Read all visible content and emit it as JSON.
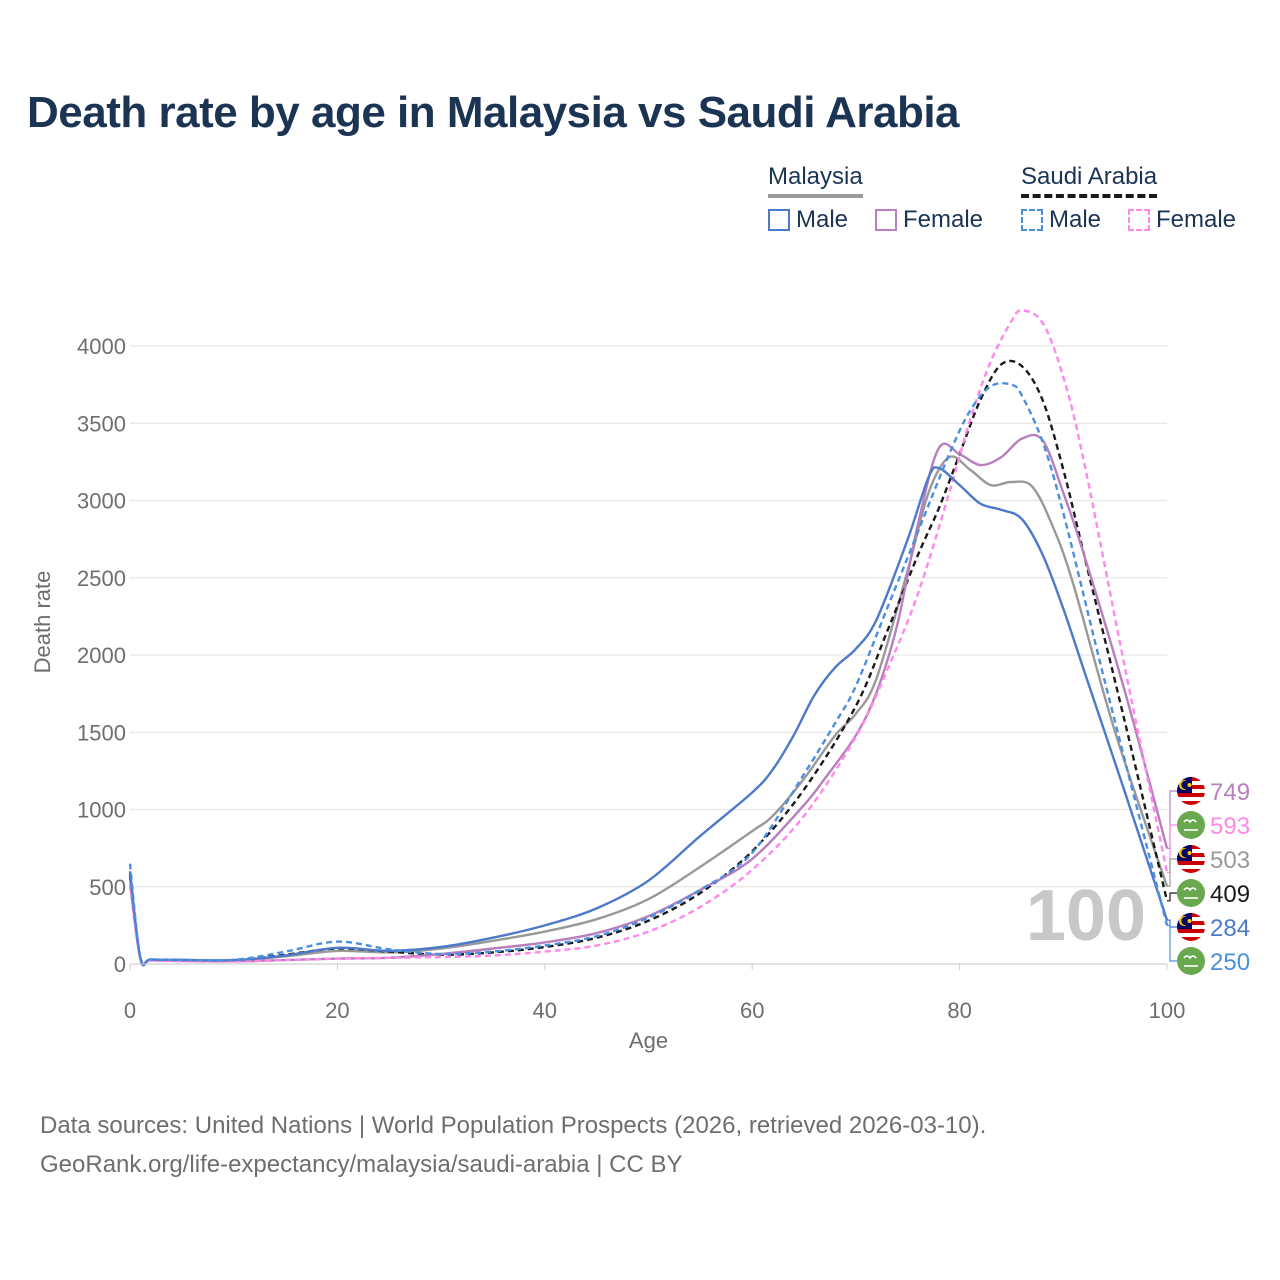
{
  "title": "Death rate by age in Malaysia vs Saudi Arabia",
  "legend": {
    "groups": [
      {
        "name": "Malaysia",
        "items": [
          "Male",
          "Female"
        ]
      },
      {
        "name": "Saudi Arabia",
        "items": [
          "Male",
          "Female"
        ]
      }
    ]
  },
  "source": {
    "line1": "Data sources: United Nations | World Population Prospects (2026, retrieved 2026-03-10).",
    "line2": "GeoRank.org/life-expectancy/malaysia/saudi-arabia | CC BY"
  },
  "chart_data": {
    "type": "line",
    "xlabel": "Age",
    "ylabel": "Death rate",
    "xlim": [
      0,
      100
    ],
    "ylim": [
      0,
      4000
    ],
    "xticks": [
      0,
      20,
      40,
      60,
      80,
      100
    ],
    "yticks": [
      0,
      500,
      1000,
      1500,
      2000,
      2500,
      3000,
      3500,
      4000
    ],
    "watermark": "100",
    "series": [
      {
        "id": "my-total",
        "name": "Malaysia (both sexes)",
        "color": "#999999",
        "dashed": false,
        "x": [
          0,
          1,
          2,
          5,
          10,
          15,
          20,
          25,
          30,
          35,
          40,
          45,
          50,
          55,
          60,
          62,
          65,
          68,
          70,
          72,
          75,
          77,
          79,
          81,
          83,
          85,
          87,
          89,
          91,
          95,
          100
        ],
        "y": [
          560,
          40,
          28,
          25,
          22,
          50,
          85,
          75,
          100,
          150,
          210,
          290,
          420,
          630,
          860,
          960,
          1200,
          1480,
          1620,
          1850,
          2550,
          3050,
          3280,
          3200,
          3100,
          3120,
          3090,
          2830,
          2450,
          1500,
          503
        ]
      },
      {
        "id": "my-male",
        "name": "Malaysia Male",
        "color": "#4c7ac9",
        "dashed": false,
        "x": [
          0,
          1,
          2,
          5,
          10,
          15,
          20,
          25,
          30,
          35,
          40,
          45,
          50,
          55,
          60,
          62,
          64,
          66,
          68,
          70,
          72,
          75,
          77,
          78,
          80,
          82,
          84,
          86,
          88,
          90,
          92,
          96,
          100
        ],
        "y": [
          600,
          40,
          30,
          27,
          25,
          55,
          105,
          85,
          110,
          170,
          250,
          360,
          540,
          830,
          1110,
          1260,
          1480,
          1740,
          1920,
          2040,
          2230,
          2750,
          3150,
          3210,
          3100,
          2980,
          2940,
          2880,
          2650,
          2300,
          1900,
          1100,
          284
        ]
      },
      {
        "id": "my-female",
        "name": "Malaysia Female",
        "color": "#b77fbd",
        "dashed": false,
        "x": [
          0,
          1,
          2,
          5,
          10,
          15,
          20,
          25,
          30,
          35,
          40,
          45,
          50,
          55,
          60,
          65,
          67,
          70,
          72,
          74,
          76,
          78,
          80,
          82,
          84,
          86,
          88,
          90,
          92,
          96,
          100
        ],
        "y": [
          520,
          35,
          25,
          20,
          18,
          25,
          35,
          40,
          65,
          100,
          140,
          200,
          310,
          480,
          680,
          1030,
          1200,
          1480,
          1760,
          2200,
          2850,
          3340,
          3300,
          3230,
          3280,
          3400,
          3390,
          3050,
          2650,
          1750,
          749
        ]
      },
      {
        "id": "sa-total",
        "name": "Saudi Arabia (both sexes)",
        "color": "#1a1a1a",
        "dashed": true,
        "x": [
          0,
          1,
          2,
          5,
          10,
          15,
          20,
          25,
          30,
          35,
          40,
          45,
          50,
          55,
          60,
          65,
          70,
          73,
          76,
          78,
          80,
          82,
          84,
          86,
          88,
          90,
          92,
          96,
          100
        ],
        "y": [
          580,
          35,
          25,
          22,
          22,
          60,
          100,
          80,
          60,
          75,
          110,
          170,
          280,
          460,
          730,
          1130,
          1670,
          2150,
          2650,
          2950,
          3300,
          3650,
          3880,
          3870,
          3650,
          3200,
          2650,
          1550,
          409
        ]
      },
      {
        "id": "sa-male",
        "name": "Saudi Arabia Male",
        "color": "#4a8fe0",
        "dashed": true,
        "x": [
          0,
          1,
          2,
          5,
          10,
          15,
          20,
          25,
          30,
          35,
          40,
          45,
          50,
          55,
          60,
          65,
          68,
          70,
          73,
          76,
          79,
          81,
          83,
          85,
          86,
          88,
          90,
          94,
          100
        ],
        "y": [
          650,
          40,
          30,
          27,
          27,
          80,
          145,
          95,
          65,
          80,
          120,
          180,
          300,
          480,
          720,
          1230,
          1560,
          1800,
          2300,
          2800,
          3300,
          3580,
          3740,
          3750,
          3680,
          3380,
          2920,
          1830,
          250
        ]
      },
      {
        "id": "sa-female",
        "name": "Saudi Arabia Female",
        "color": "#ff88ea",
        "dashed": true,
        "x": [
          0,
          1,
          2,
          5,
          10,
          15,
          20,
          25,
          30,
          35,
          40,
          45,
          50,
          55,
          60,
          65,
          70,
          73,
          76,
          79,
          81,
          83,
          85,
          86,
          88,
          90,
          92,
          96,
          100
        ],
        "y": [
          540,
          30,
          22,
          18,
          16,
          25,
          35,
          40,
          45,
          55,
          80,
          120,
          210,
          370,
          610,
          960,
          1470,
          1900,
          2400,
          3050,
          3520,
          3900,
          4160,
          4230,
          4150,
          3800,
          3250,
          1900,
          593
        ]
      }
    ],
    "end_labels": [
      {
        "country": "Malaysia",
        "series": "my-female",
        "value": "749",
        "color": "#b77fbd"
      },
      {
        "country": "Saudi Arabia",
        "series": "sa-female",
        "value": "593",
        "color": "#ff88ea"
      },
      {
        "country": "Malaysia",
        "series": "my-total",
        "value": "503",
        "color": "#999999"
      },
      {
        "country": "Saudi Arabia",
        "series": "sa-total",
        "value": "409",
        "color": "#1a1a1a"
      },
      {
        "country": "Malaysia",
        "series": "my-male",
        "value": "284",
        "color": "#4c7ac9"
      },
      {
        "country": "Saudi Arabia",
        "series": "sa-male",
        "value": "250",
        "color": "#4a8fe0"
      }
    ]
  }
}
